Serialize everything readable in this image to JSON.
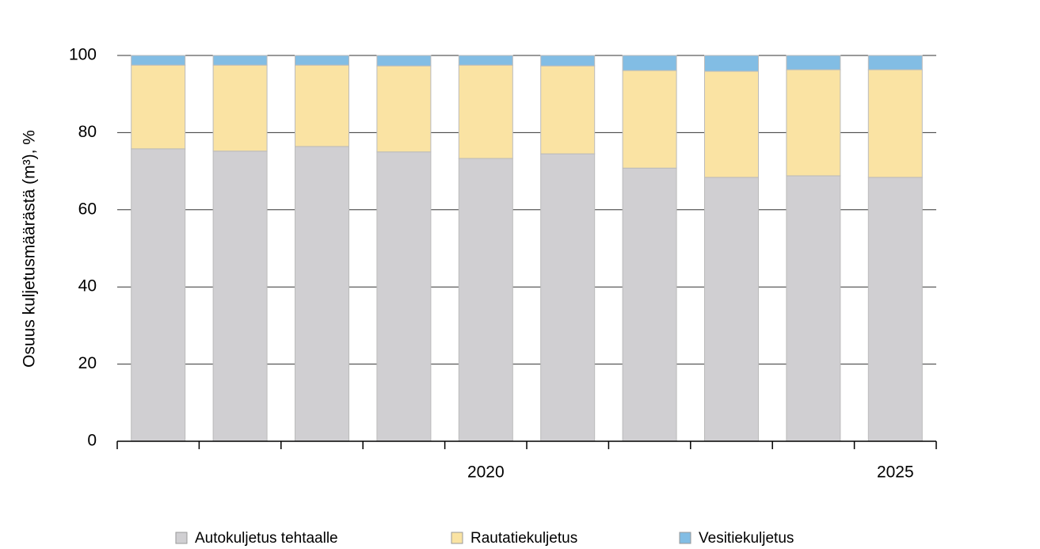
{
  "chart_data": {
    "type": "stacked_bar",
    "y_label": "Osuus kuljetusmäärästä (m³), %",
    "categories": [
      null,
      null,
      null,
      null,
      "2020",
      null,
      null,
      null,
      null,
      "2025"
    ],
    "series": [
      {
        "name": "Autokuljetus tehtaalle",
        "color": "#d0cfd2",
        "values": [
          75.8,
          75.2,
          76.4,
          75.0,
          73.3,
          74.5,
          70.8,
          68.4,
          68.8,
          68.4
        ]
      },
      {
        "name": "Rautatiekuljetus",
        "color": "#fae3a3",
        "values": [
          21.7,
          22.3,
          21.1,
          22.3,
          24.2,
          22.8,
          25.3,
          27.5,
          27.5,
          27.9
        ]
      },
      {
        "name": "Vesitiekuljetus",
        "color": "#82bde4",
        "values": [
          2.5,
          2.5,
          2.5,
          2.7,
          2.5,
          2.7,
          3.9,
          4.1,
          3.7,
          3.7
        ]
      }
    ],
    "ylim": [
      0,
      100
    ],
    "yticks": [
      0,
      20,
      40,
      60,
      80,
      100
    ],
    "grid": true
  }
}
